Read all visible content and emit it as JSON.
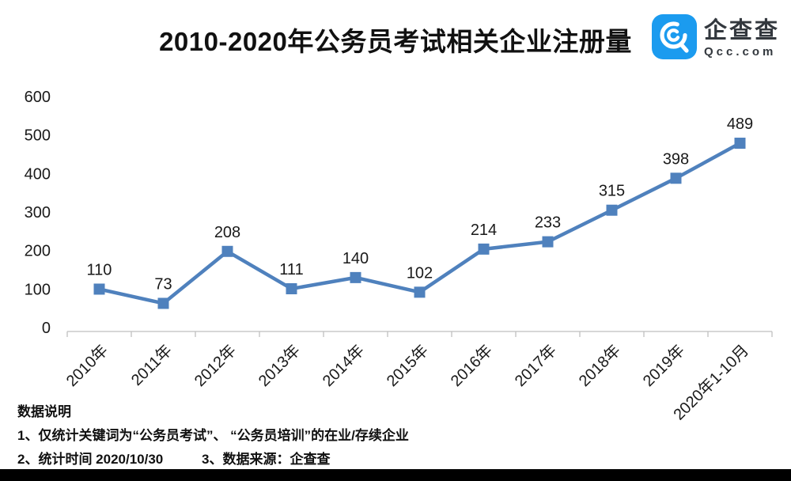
{
  "header": {
    "title": "2010-2020年公务员考试相关企业注册量",
    "logo": {
      "name": "企查查",
      "domain": "Qcc.com",
      "brand_color": "#1b9bef",
      "text_color": "#33383e"
    }
  },
  "chart_data": {
    "type": "line",
    "title": "2010-2020年公务员考试相关企业注册量",
    "categories": [
      "2010年",
      "2011年",
      "2012年",
      "2013年",
      "2014年",
      "2015年",
      "2016年",
      "2017年",
      "2018年",
      "2019年",
      "2020年1-10月"
    ],
    "values": [
      110,
      73,
      208,
      111,
      140,
      102,
      214,
      233,
      315,
      398,
      489
    ],
    "y_ticks": [
      0,
      100,
      200,
      300,
      400,
      500,
      600
    ],
    "ylim": [
      0,
      600
    ],
    "xlabel": "",
    "ylabel": "",
    "legend": "none",
    "grid": false,
    "marker": "square",
    "data_labels": true,
    "series_color": "#4f81bd",
    "axis_color": "#bfbfbf",
    "label_color": "#1a1a1a"
  },
  "notes": {
    "heading": "数据说明",
    "line1": "1、仅统计关键词为“公务员考试”、 “公务员培训”的在业/存续企业",
    "line2a": "2、统计时间 2020/10/30",
    "line2b": "3、数据来源：企查查"
  }
}
